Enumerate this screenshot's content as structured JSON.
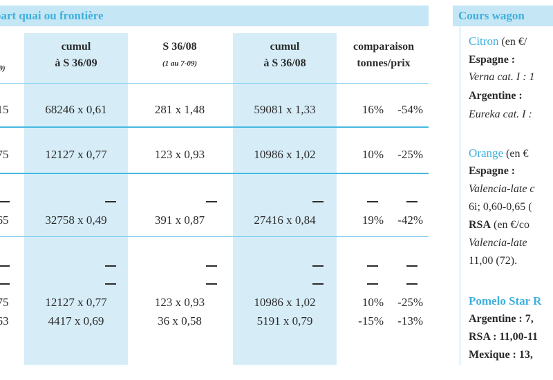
{
  "left_banner": "part quai ou frontière",
  "right_banner": "Cours wagon",
  "headers": {
    "col0_sub": "9)",
    "col1_l1": "cumul",
    "col1_l2": "à S 36/09",
    "col2_l1": "S 36/08",
    "col2_sub": "(1 au 7-09)",
    "col3_l1": "cumul",
    "col3_l2": "à S 36/08",
    "col4_l1": "comparaison",
    "col4_l2": "tonnes/prix"
  },
  "rows": [
    {
      "c0": "15",
      "c1": "68246 x 0,61",
      "c2": "281 x 1,48",
      "c3": "59081 x 1,33",
      "t": "16%",
      "p": "-54%"
    },
    {
      "c0": "75",
      "c1": "12127 x 0,77",
      "c2": "123 x 0,93",
      "c3": "10986 x 1,02",
      "t": "10%",
      "p": "-25%"
    },
    {
      "c0": "65",
      "c1": "32758 x 0,49",
      "c2": "391 x 0,87",
      "c3": "27416 x 0,84",
      "t": "19%",
      "p": "-42%"
    },
    {
      "c0": "75",
      "c1": "12127 x 0,77",
      "c2": "123 x 0,93",
      "c3": "10986 x 1,02",
      "t": "10%",
      "p": "-25%"
    },
    {
      "c0": "63",
      "c1": "4417 x 0,69",
      "c2": "36 x 0,58",
      "c3": "5191 x 0,79",
      "t": "-15%",
      "p": "-13%"
    }
  ],
  "sidebar": {
    "citron_title": "Citron",
    "citron_unit": "(en €/",
    "espagne": "Espagne :",
    "verna": "Verna cat. I : 1",
    "argentine": "Argentine :",
    "eureka": "Eureka cat. I :",
    "orange_title": "Orange",
    "orange_unit": "(en €",
    "espagne2": "Espagne :",
    "valencia": "Valencia-late c",
    "valencia_price": "6i; 0,60-0,65 (",
    "rsa_label": "RSA",
    "rsa_unit": "(en €/co",
    "valencia_late": "Valencia-late",
    "valencia_late_price": "11,00 (72).",
    "pomelo": "Pomelo Star R",
    "arg_price": "Argentine : 7,",
    "rsa_price": "RSA : 11,00-11",
    "mex_price": "Mexique : 13,"
  }
}
